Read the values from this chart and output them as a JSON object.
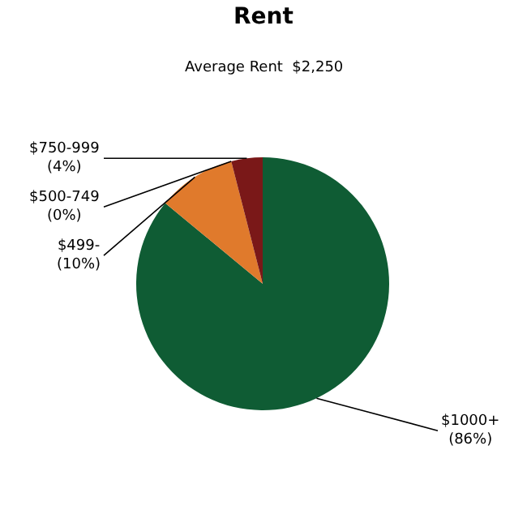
{
  "chart_data": {
    "type": "pie",
    "title": "Rent",
    "subtitle": "Average Rent  $2,250",
    "categories": [
      "$1000+",
      "$499-",
      "$500-749",
      "$750-999"
    ],
    "values": [
      86,
      10,
      0,
      4
    ],
    "value_labels": [
      "(86%)",
      "(10%)",
      "(0%)",
      "(4%)"
    ],
    "colors": [
      "#0f5c34",
      "#e07a2c",
      "#b0a030",
      "#7a1818"
    ],
    "legend": false
  }
}
